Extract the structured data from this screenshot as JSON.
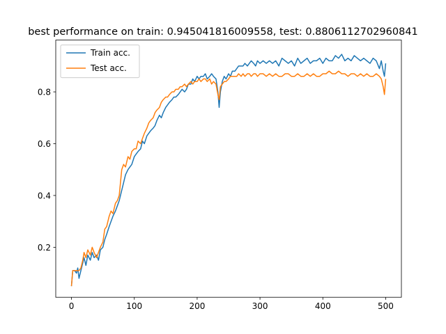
{
  "chart_data": {
    "type": "line",
    "title": "best performance on train: 0.945041816009558, test: 0.8806112702960841",
    "xlabel": "",
    "ylabel": "",
    "xlim": [
      -25,
      525
    ],
    "ylim": [
      0.007,
      1.0
    ],
    "x_ticks": [
      0,
      100,
      200,
      300,
      400,
      500
    ],
    "y_ticks": [
      0.2,
      0.4,
      0.6,
      0.8
    ],
    "grid": false,
    "legend_position": "top-left",
    "series": [
      {
        "name": "Train acc.",
        "color": "#1f77b4",
        "x": [
          0,
          2,
          5,
          8,
          10,
          12,
          15,
          18,
          20,
          23,
          26,
          30,
          33,
          36,
          40,
          43,
          46,
          50,
          53,
          56,
          60,
          63,
          66,
          70,
          73,
          76,
          80,
          83,
          86,
          90,
          93,
          96,
          100,
          103,
          106,
          110,
          113,
          116,
          120,
          123,
          126,
          130,
          133,
          136,
          140,
          143,
          146,
          150,
          153,
          156,
          160,
          163,
          166,
          170,
          173,
          176,
          180,
          183,
          186,
          190,
          193,
          196,
          200,
          203,
          206,
          210,
          213,
          216,
          220,
          223,
          226,
          230,
          233,
          235,
          237,
          240,
          243,
          246,
          250,
          253,
          256,
          260,
          263,
          266,
          270,
          273,
          276,
          280,
          283,
          286,
          290,
          293,
          296,
          300,
          305,
          310,
          315,
          320,
          325,
          330,
          335,
          340,
          345,
          350,
          355,
          360,
          365,
          370,
          375,
          380,
          385,
          390,
          395,
          400,
          405,
          410,
          415,
          420,
          425,
          430,
          435,
          440,
          445,
          450,
          455,
          460,
          465,
          470,
          475,
          480,
          485,
          490,
          493,
          496,
          498,
          500
        ],
        "y": [
          0.05,
          0.11,
          0.11,
          0.1,
          0.12,
          0.08,
          0.11,
          0.14,
          0.16,
          0.13,
          0.17,
          0.15,
          0.18,
          0.16,
          0.17,
          0.15,
          0.19,
          0.2,
          0.23,
          0.25,
          0.28,
          0.3,
          0.32,
          0.34,
          0.36,
          0.38,
          0.42,
          0.45,
          0.48,
          0.5,
          0.51,
          0.52,
          0.55,
          0.56,
          0.57,
          0.58,
          0.61,
          0.6,
          0.63,
          0.64,
          0.65,
          0.66,
          0.67,
          0.69,
          0.71,
          0.7,
          0.72,
          0.74,
          0.75,
          0.76,
          0.77,
          0.78,
          0.78,
          0.79,
          0.8,
          0.81,
          0.8,
          0.81,
          0.83,
          0.83,
          0.85,
          0.84,
          0.86,
          0.85,
          0.86,
          0.86,
          0.87,
          0.85,
          0.86,
          0.87,
          0.86,
          0.85,
          0.8,
          0.74,
          0.8,
          0.84,
          0.86,
          0.85,
          0.87,
          0.86,
          0.88,
          0.88,
          0.89,
          0.9,
          0.9,
          0.9,
          0.91,
          0.9,
          0.91,
          0.92,
          0.91,
          0.9,
          0.92,
          0.91,
          0.92,
          0.91,
          0.92,
          0.91,
          0.92,
          0.9,
          0.93,
          0.92,
          0.91,
          0.92,
          0.9,
          0.93,
          0.91,
          0.92,
          0.93,
          0.91,
          0.92,
          0.92,
          0.93,
          0.91,
          0.93,
          0.92,
          0.92,
          0.94,
          0.93,
          0.945,
          0.92,
          0.93,
          0.92,
          0.94,
          0.93,
          0.92,
          0.93,
          0.92,
          0.91,
          0.93,
          0.92,
          0.89,
          0.92,
          0.88,
          0.86,
          0.91
        ]
      },
      {
        "name": "Test acc.",
        "color": "#ff7f0e",
        "x": [
          0,
          2,
          5,
          8,
          10,
          12,
          15,
          18,
          20,
          23,
          26,
          30,
          33,
          36,
          40,
          43,
          46,
          50,
          53,
          56,
          60,
          63,
          66,
          70,
          73,
          76,
          80,
          83,
          86,
          90,
          93,
          96,
          100,
          103,
          106,
          110,
          113,
          116,
          120,
          123,
          126,
          130,
          133,
          136,
          140,
          143,
          146,
          150,
          153,
          156,
          160,
          163,
          166,
          170,
          173,
          176,
          180,
          183,
          186,
          190,
          193,
          196,
          200,
          203,
          206,
          210,
          213,
          216,
          220,
          223,
          226,
          230,
          233,
          235,
          237,
          240,
          243,
          246,
          250,
          253,
          256,
          260,
          263,
          266,
          270,
          273,
          276,
          280,
          283,
          286,
          290,
          293,
          296,
          300,
          305,
          310,
          315,
          320,
          325,
          330,
          335,
          340,
          345,
          350,
          355,
          360,
          365,
          370,
          375,
          380,
          385,
          390,
          395,
          400,
          405,
          410,
          415,
          420,
          425,
          430,
          435,
          440,
          445,
          450,
          455,
          460,
          465,
          470,
          475,
          480,
          485,
          490,
          493,
          496,
          498,
          500
        ],
        "y": [
          0.05,
          0.11,
          0.11,
          0.11,
          0.11,
          0.11,
          0.12,
          0.15,
          0.18,
          0.16,
          0.19,
          0.17,
          0.2,
          0.18,
          0.16,
          0.18,
          0.2,
          0.22,
          0.27,
          0.28,
          0.32,
          0.34,
          0.33,
          0.37,
          0.38,
          0.4,
          0.5,
          0.52,
          0.51,
          0.55,
          0.54,
          0.57,
          0.58,
          0.58,
          0.61,
          0.6,
          0.62,
          0.64,
          0.66,
          0.68,
          0.69,
          0.7,
          0.72,
          0.73,
          0.74,
          0.76,
          0.77,
          0.78,
          0.78,
          0.79,
          0.8,
          0.8,
          0.81,
          0.81,
          0.82,
          0.82,
          0.83,
          0.82,
          0.83,
          0.84,
          0.83,
          0.84,
          0.84,
          0.85,
          0.84,
          0.85,
          0.85,
          0.84,
          0.85,
          0.83,
          0.84,
          0.83,
          0.79,
          0.77,
          0.82,
          0.83,
          0.84,
          0.84,
          0.85,
          0.86,
          0.86,
          0.86,
          0.86,
          0.87,
          0.86,
          0.87,
          0.86,
          0.87,
          0.87,
          0.86,
          0.87,
          0.87,
          0.86,
          0.87,
          0.87,
          0.86,
          0.87,
          0.86,
          0.87,
          0.86,
          0.86,
          0.87,
          0.87,
          0.86,
          0.86,
          0.87,
          0.86,
          0.86,
          0.87,
          0.86,
          0.87,
          0.86,
          0.86,
          0.87,
          0.87,
          0.88,
          0.87,
          0.87,
          0.88,
          0.87,
          0.87,
          0.86,
          0.87,
          0.87,
          0.86,
          0.87,
          0.86,
          0.87,
          0.86,
          0.86,
          0.87,
          0.86,
          0.85,
          0.82,
          0.79,
          0.85
        ]
      }
    ]
  }
}
